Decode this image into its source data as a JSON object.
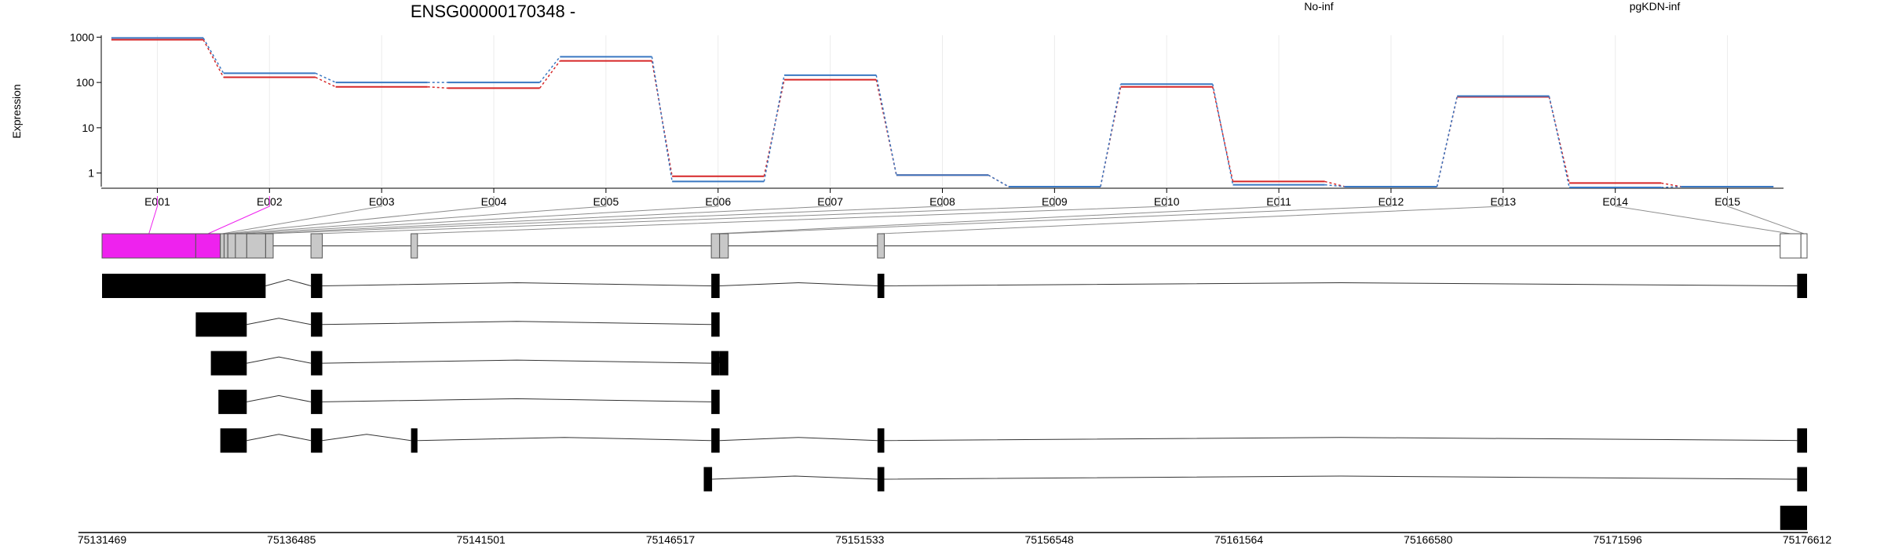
{
  "colors": {
    "no_inf": "#d62728",
    "pgkdn_inf": "#3a78c2",
    "highlight": "#ee22ee",
    "axis": "#000000",
    "grid": "#ececec",
    "exon_grey": "#c8c8c8"
  },
  "chart_data": {
    "type": "line",
    "title": "ENSG00000170348 -",
    "ylabel": "Expression",
    "yscale": "log",
    "ylim": [
      0.5,
      1100
    ],
    "yticks": [
      "1000",
      "100",
      "10",
      "1"
    ],
    "ytick_values": [
      1000,
      100,
      10,
      1
    ],
    "grid": true,
    "legend_placement": "top-right",
    "categories": [
      "E001",
      "E002",
      "E003",
      "E004",
      "E005",
      "E006",
      "E007",
      "E008",
      "E009",
      "E010",
      "E011",
      "E012",
      "E013",
      "E014",
      "E015"
    ],
    "series": [
      {
        "name": "No-inf",
        "values": [
          880,
          130,
          80,
          75,
          300,
          0.85,
          115,
          0.9,
          0.5,
          80,
          0.65,
          0.5,
          48,
          0.6,
          0.5
        ]
      },
      {
        "name": "pgKDN-inf",
        "values": [
          960,
          160,
          100,
          100,
          370,
          0.65,
          145,
          0.9,
          0.5,
          92,
          0.55,
          0.5,
          50,
          0.48,
          0.5
        ]
      }
    ],
    "highlighted_exons": [
      "E001",
      "E002"
    ]
  },
  "gene_model": {
    "coordinates": [
      "75131469",
      "75136485",
      "75141501",
      "75146517",
      "75151533",
      "75156548",
      "75161564",
      "75166580",
      "75171596",
      "75176612"
    ],
    "coord_min": 75131469,
    "coord_max": 75176612,
    "exon_bins": [
      [
        75131469,
        75133950
      ],
      [
        75133950,
        75134600
      ],
      [
        75134600,
        75134700
      ],
      [
        75134700,
        75134800
      ],
      [
        75134800,
        75135000
      ],
      [
        75135000,
        75135300
      ],
      [
        75135300,
        75135800
      ],
      [
        75135800,
        75136000
      ],
      [
        75137000,
        75137300
      ],
      [
        75139650,
        75139820
      ],
      [
        75147600,
        75147820
      ],
      [
        75147820,
        75148050
      ],
      [
        75152000,
        75152180
      ],
      [
        75175900,
        75176450
      ],
      [
        75176450,
        75176612
      ]
    ],
    "transcripts": [
      {
        "exons": [
          [
            75131469,
            75135800
          ],
          [
            75137000,
            75137300
          ],
          [
            75147600,
            75147820
          ],
          [
            75152000,
            75152180
          ],
          [
            75176350,
            75176612
          ]
        ]
      },
      {
        "exons": [
          [
            75133950,
            75135300
          ],
          [
            75137000,
            75137300
          ],
          [
            75147600,
            75147820
          ]
        ]
      },
      {
        "exons": [
          [
            75134350,
            75135300
          ],
          [
            75137000,
            75137300
          ],
          [
            75147600,
            75147820
          ],
          [
            75147820,
            75148050
          ]
        ]
      },
      {
        "exons": [
          [
            75134550,
            75135300
          ],
          [
            75137000,
            75137300
          ],
          [
            75147600,
            75147820
          ]
        ]
      },
      {
        "exons": [
          [
            75134600,
            75135300
          ],
          [
            75137000,
            75137300
          ],
          [
            75139650,
            75139820
          ],
          [
            75147600,
            75147820
          ],
          [
            75152000,
            75152180
          ],
          [
            75176350,
            75176612
          ]
        ]
      },
      {
        "exons": [
          [
            75147400,
            75147620
          ],
          [
            75152000,
            75152180
          ],
          [
            75176350,
            75176612
          ]
        ]
      },
      {
        "exons": [
          [
            75175900,
            75176612
          ]
        ]
      }
    ]
  }
}
